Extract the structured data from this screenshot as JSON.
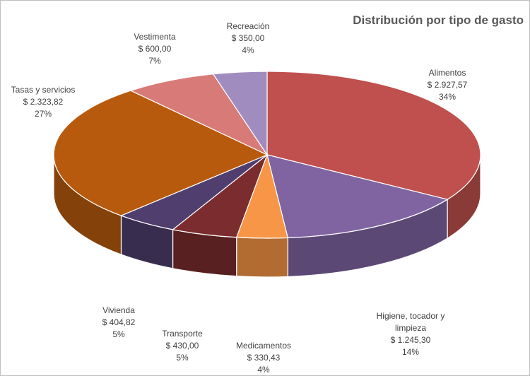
{
  "chart_data": {
    "type": "pie",
    "title": "Distribución por tipo de gasto",
    "categories": [
      "Alimentos",
      "Higiene, tocador y limpieza",
      "Medicamentos",
      "Transporte",
      "Vivienda",
      "Tasas y servicios",
      "Vestimenta",
      "Recreación"
    ],
    "values": [
      2927.57,
      1245.3,
      330.43,
      430.0,
      404.82,
      2323.82,
      600.0,
      350.0
    ],
    "value_labels": [
      "$ 2.927,57",
      "$ 1.245,30",
      "$ 330,43",
      "$ 430,00",
      "$ 404,82",
      "$ 2.323,82",
      "$ 600,00",
      "$ 350,00"
    ],
    "percent_labels": [
      "34%",
      "14%",
      "4%",
      "5%",
      "5%",
      "27%",
      "7%",
      "4%"
    ],
    "colors": [
      "#c0504d",
      "#8064a2",
      "#f79646",
      "#7b2c2e",
      "#4f3e6e",
      "#b85a0d",
      "#d87b78",
      "#a18cc0"
    ]
  }
}
